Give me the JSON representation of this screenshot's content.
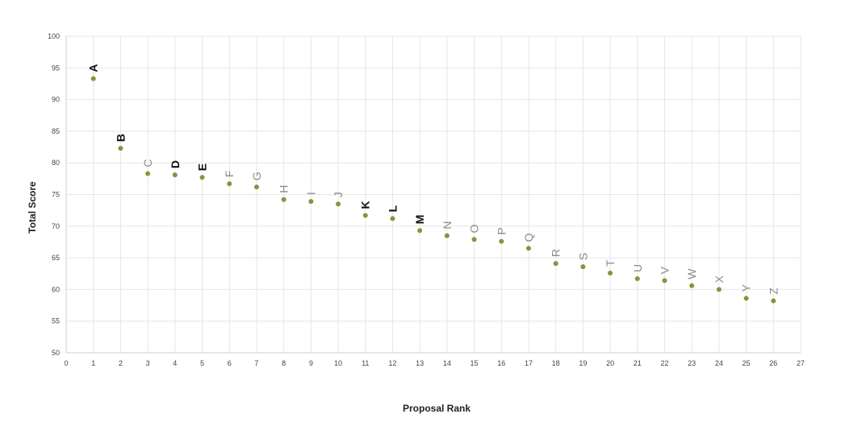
{
  "chart_data": {
    "type": "scatter",
    "xlabel": "Proposal Rank",
    "ylabel": "Total Score",
    "xlim": [
      0,
      27
    ],
    "ylim": [
      50,
      100
    ],
    "x_ticks": [
      0,
      1,
      2,
      3,
      4,
      5,
      6,
      7,
      8,
      9,
      10,
      11,
      12,
      13,
      14,
      15,
      16,
      17,
      18,
      19,
      20,
      21,
      22,
      23,
      24,
      25,
      26,
      27
    ],
    "y_ticks": [
      50,
      55,
      60,
      65,
      70,
      75,
      80,
      85,
      90,
      95,
      100
    ],
    "grid": true,
    "marker_color": "#7a9a3c",
    "label_color_bold": "#111111",
    "label_color_normal": "#8a8a8a",
    "points": [
      {
        "x": 1,
        "y": 93.3,
        "label": "A",
        "bold": true
      },
      {
        "x": 2,
        "y": 82.3,
        "label": "B",
        "bold": true
      },
      {
        "x": 3,
        "y": 78.3,
        "label": "C",
        "bold": false
      },
      {
        "x": 4,
        "y": 78.1,
        "label": "D",
        "bold": true
      },
      {
        "x": 5,
        "y": 77.7,
        "label": "E",
        "bold": true
      },
      {
        "x": 6,
        "y": 76.7,
        "label": "F",
        "bold": false
      },
      {
        "x": 7,
        "y": 76.2,
        "label": "G",
        "bold": false
      },
      {
        "x": 8,
        "y": 74.2,
        "label": "H",
        "bold": false
      },
      {
        "x": 9,
        "y": 73.9,
        "label": "I",
        "bold": false
      },
      {
        "x": 10,
        "y": 73.5,
        "label": "J",
        "bold": false
      },
      {
        "x": 11,
        "y": 71.7,
        "label": "K",
        "bold": true
      },
      {
        "x": 12,
        "y": 71.2,
        "label": "L",
        "bold": true
      },
      {
        "x": 13,
        "y": 69.3,
        "label": "M",
        "bold": true
      },
      {
        "x": 14,
        "y": 68.5,
        "label": "N",
        "bold": false
      },
      {
        "x": 15,
        "y": 67.9,
        "label": "O",
        "bold": false
      },
      {
        "x": 16,
        "y": 67.6,
        "label": "P",
        "bold": false
      },
      {
        "x": 17,
        "y": 66.5,
        "label": "Q",
        "bold": false
      },
      {
        "x": 18,
        "y": 64.1,
        "label": "R",
        "bold": false
      },
      {
        "x": 19,
        "y": 63.6,
        "label": "S",
        "bold": false
      },
      {
        "x": 20,
        "y": 62.6,
        "label": "T",
        "bold": false
      },
      {
        "x": 21,
        "y": 61.7,
        "label": "U",
        "bold": false
      },
      {
        "x": 22,
        "y": 61.4,
        "label": "V",
        "bold": false
      },
      {
        "x": 23,
        "y": 60.6,
        "label": "W",
        "bold": false
      },
      {
        "x": 24,
        "y": 60.0,
        "label": "X",
        "bold": false
      },
      {
        "x": 25,
        "y": 58.6,
        "label": "Y",
        "bold": false
      },
      {
        "x": 26,
        "y": 58.2,
        "label": "Z",
        "bold": false
      }
    ]
  }
}
